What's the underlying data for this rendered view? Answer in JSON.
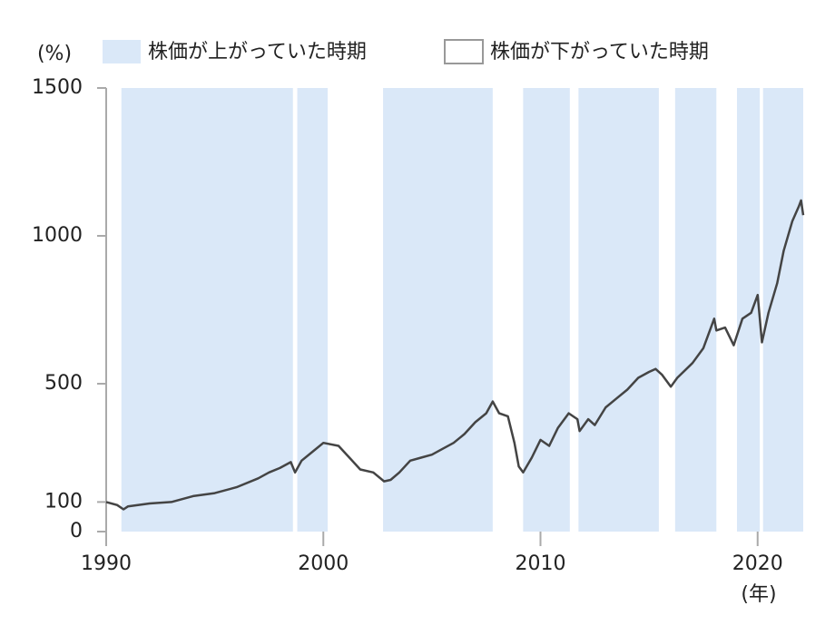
{
  "chart_data": {
    "type": "line",
    "y_unit_label": "(%)",
    "x_unit_label": "(年)",
    "legend": [
      {
        "name": "株価が上がっていた時期",
        "color": "#dae8f8"
      },
      {
        "name": "株価が下がっていた時期",
        "color": "#ffffff"
      }
    ],
    "rising_periods": [
      [
        1990.7,
        1998.6
      ],
      [
        1998.8,
        2000.2
      ],
      [
        2002.75,
        2007.8
      ],
      [
        2009.2,
        2011.35
      ],
      [
        2011.75,
        2015.45
      ],
      [
        2016.2,
        2018.1
      ],
      [
        2019.05,
        2020.1
      ],
      [
        2020.25,
        2022.1
      ]
    ],
    "line_color": "#444444",
    "x": [
      1990.0,
      1990.5,
      1990.8,
      1991.0,
      1992.0,
      1993.0,
      1994.0,
      1995.0,
      1996.0,
      1997.0,
      1997.5,
      1998.0,
      1998.5,
      1998.7,
      1999.0,
      1999.5,
      2000.0,
      2000.7,
      2001.2,
      2001.7,
      2002.3,
      2002.8,
      2003.1,
      2003.5,
      2004.0,
      2004.5,
      2005.0,
      2005.5,
      2006.0,
      2006.5,
      2007.0,
      2007.5,
      2007.8,
      2008.1,
      2008.5,
      2008.8,
      2009.0,
      2009.2,
      2009.6,
      2010.0,
      2010.4,
      2010.8,
      2011.3,
      2011.7,
      2011.8,
      2012.2,
      2012.5,
      2013.0,
      2013.5,
      2014.0,
      2014.5,
      2015.0,
      2015.3,
      2015.6,
      2016.0,
      2016.3,
      2017.0,
      2017.5,
      2018.0,
      2018.1,
      2018.5,
      2018.9,
      2019.3,
      2019.7,
      2020.0,
      2020.2,
      2020.5,
      2020.9,
      2021.2,
      2021.6,
      2021.9,
      2022.0,
      2022.1
    ],
    "values": [
      100,
      90,
      75,
      85,
      95,
      100,
      120,
      130,
      150,
      180,
      200,
      215,
      235,
      200,
      240,
      270,
      300,
      290,
      250,
      210,
      200,
      170,
      175,
      200,
      240,
      250,
      260,
      280,
      300,
      330,
      370,
      400,
      440,
      400,
      390,
      300,
      220,
      200,
      250,
      310,
      290,
      350,
      400,
      380,
      340,
      380,
      360,
      420,
      450,
      480,
      520,
      540,
      550,
      530,
      490,
      520,
      570,
      620,
      720,
      680,
      690,
      630,
      720,
      740,
      800,
      640,
      740,
      840,
      950,
      1050,
      1100,
      1120,
      1070
    ],
    "xlim": [
      1990,
      2022.1
    ],
    "ylim": [
      0,
      1500
    ],
    "xticks": [
      1990,
      2000,
      2010,
      2020
    ],
    "yticks": [
      0,
      100,
      500,
      1000,
      1500
    ]
  }
}
